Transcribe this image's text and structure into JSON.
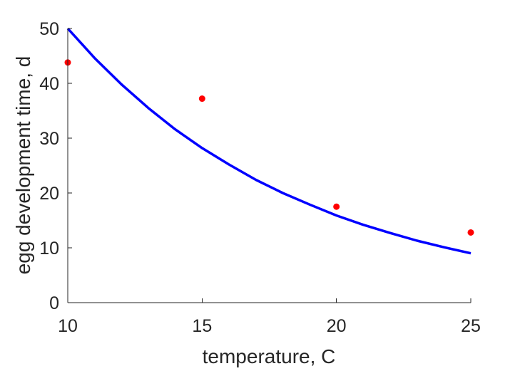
{
  "chart_data": {
    "type": "line",
    "xlabel": "temperature, C",
    "ylabel": "egg development time, d",
    "xlim": [
      10,
      25
    ],
    "ylim": [
      0,
      50
    ],
    "xticks": [
      10,
      15,
      20,
      25
    ],
    "yticks": [
      0,
      10,
      20,
      30,
      40,
      50
    ],
    "grid": false,
    "series": [
      {
        "kind": "line",
        "color": "#0000ff",
        "x": [
          10,
          11,
          12,
          13,
          14,
          15,
          16,
          17,
          18,
          19,
          20,
          21,
          22,
          23,
          24,
          25
        ],
        "y": [
          50,
          44.6,
          39.8,
          35.5,
          31.6,
          28.2,
          25.2,
          22.4,
          20.0,
          17.9,
          15.9,
          14.2,
          12.7,
          11.3,
          10.1,
          9.0
        ]
      },
      {
        "kind": "scatter",
        "color": "#ff0000",
        "x": [
          10,
          15,
          20,
          25
        ],
        "y": [
          43.8,
          37.2,
          17.5,
          12.8
        ]
      }
    ]
  }
}
